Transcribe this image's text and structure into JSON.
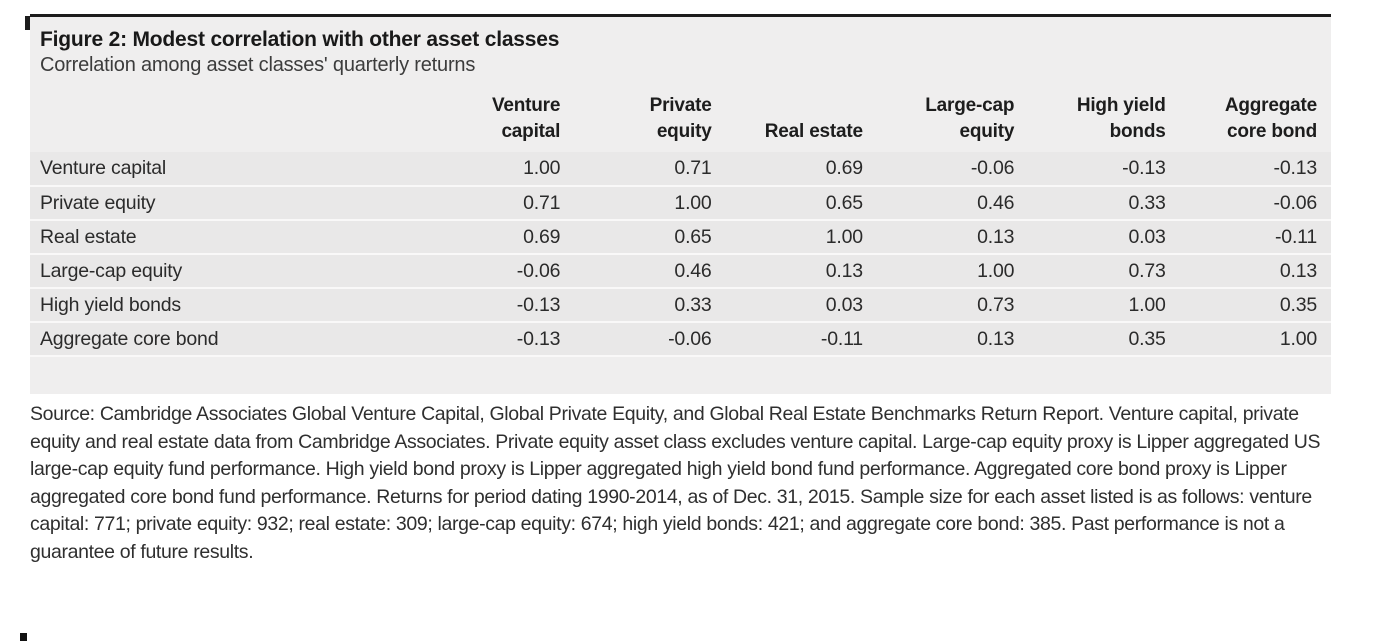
{
  "figure": {
    "title": "Figure 2: Modest correlation with other asset classes",
    "subtitle": "Correlation among asset classes' quarterly returns"
  },
  "table": {
    "column_headers": [
      "Venture capital",
      "Private equity",
      "Real estate",
      "Large-cap equity",
      "High yield bonds",
      "Aggregate core bond"
    ],
    "rows": [
      {
        "label": "Venture capital",
        "values": [
          "1.00",
          "0.71",
          "0.69",
          "-0.06",
          "-0.13",
          "-0.13"
        ]
      },
      {
        "label": "Private equity",
        "values": [
          "0.71",
          "1.00",
          "0.65",
          "0.46",
          "0.33",
          "-0.06"
        ]
      },
      {
        "label": "Real estate",
        "values": [
          "0.69",
          "0.65",
          "1.00",
          "0.13",
          "0.03",
          "-0.11"
        ]
      },
      {
        "label": "Large-cap equity",
        "values": [
          "-0.06",
          "0.46",
          "0.13",
          "1.00",
          "0.73",
          "0.13"
        ]
      },
      {
        "label": "High yield bonds",
        "values": [
          "-0.13",
          "0.33",
          "0.03",
          "0.73",
          "1.00",
          "0.35"
        ]
      },
      {
        "label": "Aggregate core bond",
        "values": [
          "-0.13",
          "-0.06",
          "-0.11",
          "0.13",
          "0.35",
          "1.00"
        ]
      }
    ]
  },
  "footnote": {
    "text": "Source: Cambridge Associates Global Venture Capital, Global Private Equity, and Global Real Estate Benchmarks Return Report. Venture capital, private equity and real estate data from Cambridge Associates. Private equity asset class excludes venture capital. Large-cap equity proxy is Lipper aggregated US large-cap equity fund performance. High yield bond proxy is Lipper aggregated high yield bond fund performance. Aggregated core bond proxy is Lipper aggregated core bond fund performance. Returns for period dating 1990-2014, as of Dec. 31, 2015. Sample size for each asset listed is as follows: venture capital: 771; private equity: 932; real estate: 309; large-cap equity: 674; high yield bonds: 421; and aggregate core bond: 385. Past performance is not a guarantee of future results."
  },
  "colors": {
    "top_rule": "#1c1c1c",
    "panel_background": "#efeeee",
    "row_background": "#e9e8e8",
    "row_separator": "#f9f8f8",
    "title_text": "#191919",
    "body_text": "#2b2b2b",
    "footnote_text": "#2f2f2f"
  },
  "chart_data": {
    "type": "table",
    "title": "Figure 2: Modest correlation with other asset classes",
    "subtitle": "Correlation among asset classes' quarterly returns",
    "columns": [
      "Venture capital",
      "Private equity",
      "Real estate",
      "Large-cap equity",
      "High yield bonds",
      "Aggregate core bond"
    ],
    "rows": [
      "Venture capital",
      "Private equity",
      "Real estate",
      "Large-cap equity",
      "High yield bonds",
      "Aggregate core bond"
    ],
    "matrix": [
      [
        1.0,
        0.71,
        0.69,
        -0.06,
        -0.13,
        -0.13
      ],
      [
        0.71,
        1.0,
        0.65,
        0.46,
        0.33,
        -0.06
      ],
      [
        0.69,
        0.65,
        1.0,
        0.13,
        0.03,
        -0.11
      ],
      [
        -0.06,
        0.46,
        0.13,
        1.0,
        0.73,
        0.13
      ],
      [
        -0.13,
        0.33,
        0.03,
        0.73,
        1.0,
        0.35
      ],
      [
        -0.13,
        -0.06,
        -0.11,
        0.13,
        0.35,
        1.0
      ]
    ],
    "value_range": [
      -1,
      1
    ],
    "notes": "Symmetric correlation matrix of quarterly returns, 1990-2014, as of Dec. 31, 2015"
  }
}
